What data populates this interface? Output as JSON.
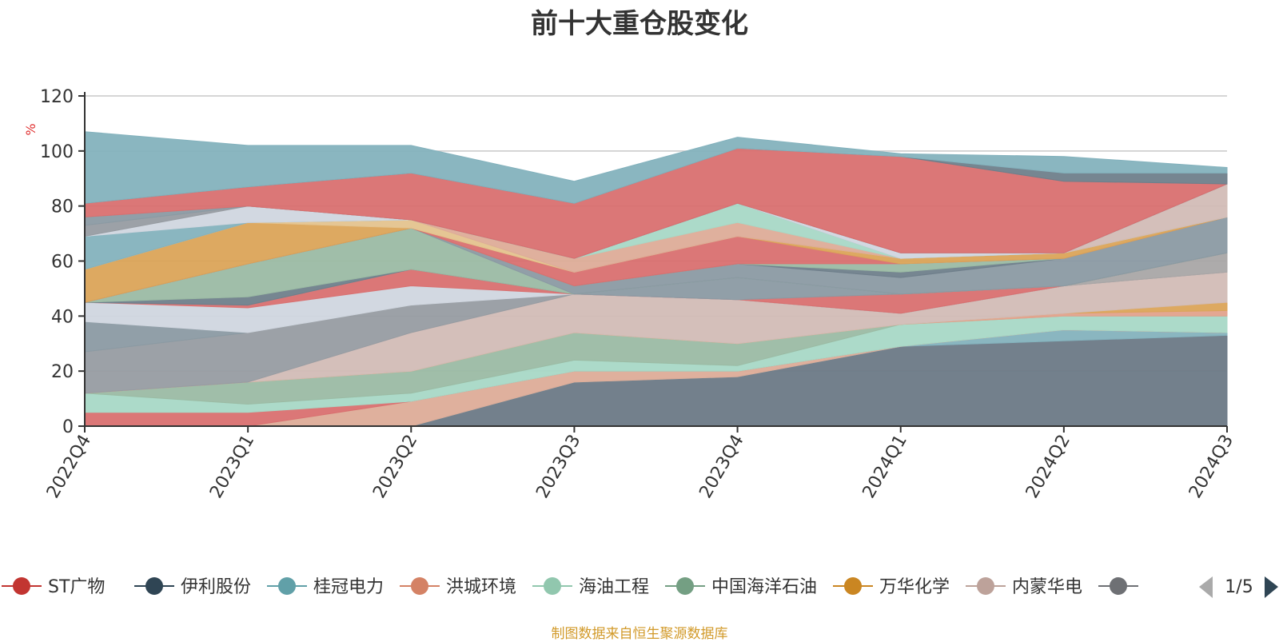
{
  "source_note": "制图数据来自恒生聚源数据库",
  "legend": {
    "page_label": "1/5",
    "prev_icon": "triangle-left-icon",
    "next_icon": "triangle-right-icon",
    "visible": [
      "ST广物",
      "伊利股份",
      "桂冠电力",
      "洪城环境",
      "海油工程",
      "中国海洋石油",
      "万华化学",
      "内蒙华电",
      ""
    ]
  },
  "chart_data": {
    "type": "area",
    "stacked": true,
    "title": "前十大重仓股变化",
    "ylabel": "%",
    "ylim": [
      0,
      120
    ],
    "yticks": [
      0,
      20,
      40,
      60,
      80,
      100,
      120
    ],
    "grid": true,
    "legend_position": "bottom",
    "categories": [
      "2022Q4",
      "2023Q1",
      "2023Q2",
      "2023Q3",
      "2023Q4",
      "2024Q1",
      "2024Q2",
      "2024Q3"
    ],
    "series": [
      {
        "name": "",
        "color": "#6b7986",
        "values": [
          0,
          0,
          0,
          16,
          18,
          29,
          31,
          33
        ]
      },
      {
        "name": "",
        "color": "#84b2bd",
        "values": [
          0,
          0,
          0,
          0,
          0,
          0,
          4,
          1
        ]
      },
      {
        "name": "",
        "color": "#ddac98",
        "values": [
          0,
          0,
          9,
          4,
          2,
          0,
          0,
          0
        ]
      },
      {
        "name": "",
        "color": "#d97070",
        "values": [
          5,
          5,
          0,
          0,
          0,
          0,
          0,
          0
        ]
      },
      {
        "name": "",
        "color": "#a8d8c6",
        "values": [
          7,
          3,
          3,
          4,
          2,
          8,
          5,
          6
        ]
      },
      {
        "name": "",
        "color": "#9bbba4",
        "values": [
          0,
          8,
          8,
          10,
          8,
          0,
          0,
          0
        ]
      },
      {
        "name": "",
        "color": "#e2a28c",
        "values": [
          0,
          0,
          0,
          0,
          0,
          0,
          1,
          2
        ]
      },
      {
        "name": "",
        "color": "#dba459",
        "values": [
          0,
          0,
          0,
          0,
          0,
          0,
          0,
          3
        ]
      },
      {
        "name": "",
        "color": "#d2bcb6",
        "values": [
          0,
          0,
          14,
          14,
          16,
          4,
          10,
          11
        ]
      },
      {
        "name": "",
        "color": "#979ca2",
        "values": [
          15,
          18,
          10,
          0,
          0,
          0,
          0,
          0
        ]
      },
      {
        "name": "",
        "color": "#a9a6a6",
        "values": [
          0,
          0,
          0,
          0,
          0,
          0,
          0,
          7
        ]
      },
      {
        "name": "",
        "color": "#8b9aa3",
        "values": [
          11,
          0,
          0,
          0,
          0,
          0,
          0,
          0
        ]
      },
      {
        "name": "",
        "color": "#d0d6df",
        "values": [
          7,
          9,
          7,
          0,
          0,
          0,
          0,
          0
        ]
      },
      {
        "name": "",
        "color": "#d97070",
        "values": [
          0,
          1,
          6,
          0,
          0,
          7,
          0,
          0
        ]
      },
      {
        "name": "",
        "color": "#8b9aa3",
        "values": [
          0,
          0,
          0,
          0,
          8,
          0,
          0,
          0
        ]
      },
      {
        "name": "",
        "color": "#6f7f8b",
        "values": [
          0,
          3,
          0,
          0,
          0,
          0,
          0,
          0
        ]
      },
      {
        "name": "",
        "color": "#9bbba4",
        "values": [
          0,
          12,
          15,
          0,
          0,
          0,
          0,
          0
        ]
      },
      {
        "name": "",
        "color": "#8b9aa3",
        "values": [
          0,
          0,
          0,
          3,
          5,
          6,
          10,
          13
        ]
      },
      {
        "name": "",
        "color": "#6f7f8b",
        "values": [
          0,
          0,
          0,
          0,
          0,
          2,
          0,
          0
        ]
      },
      {
        "name": "",
        "color": "#9bbba4",
        "values": [
          0,
          0,
          0,
          0,
          0,
          3,
          0,
          0
        ]
      },
      {
        "name": "",
        "color": "#d97070",
        "values": [
          0,
          0,
          0,
          5,
          10,
          0,
          0,
          0
        ]
      },
      {
        "name": "",
        "color": "#dba459",
        "values": [
          12,
          15,
          0,
          0,
          0,
          2,
          2,
          0
        ]
      },
      {
        "name": "",
        "color": "#e4c38e",
        "values": [
          0,
          0,
          3,
          0,
          0,
          0,
          0,
          0
        ]
      },
      {
        "name": "",
        "color": "#ddac98",
        "values": [
          0,
          0,
          0,
          5,
          5,
          0,
          0,
          0
        ]
      },
      {
        "name": "",
        "color": "#a8d8c6",
        "values": [
          0,
          0,
          0,
          0,
          7,
          0,
          0,
          0
        ]
      },
      {
        "name": "",
        "color": "#d2bcb6",
        "values": [
          0,
          0,
          0,
          0,
          0,
          0,
          0,
          12
        ]
      },
      {
        "name": "",
        "color": "#84b2bd",
        "values": [
          12,
          0,
          0,
          0,
          0,
          0,
          0,
          0
        ]
      },
      {
        "name": "",
        "color": "#d0d6df",
        "values": [
          0,
          6,
          0,
          0,
          0,
          2,
          0,
          0
        ]
      },
      {
        "name": "",
        "color": "#979ca2",
        "values": [
          4,
          0,
          0,
          0,
          0,
          0,
          0,
          0
        ]
      },
      {
        "name": "",
        "color": "#8b9aa3",
        "values": [
          3,
          0,
          0,
          0,
          0,
          0,
          0,
          0
        ]
      },
      {
        "name": "",
        "color": "#d97070",
        "values": [
          5,
          7,
          17,
          20,
          20,
          35,
          26,
          0
        ]
      },
      {
        "name": "",
        "color": "#6f7f8b",
        "values": [
          0,
          0,
          0,
          0,
          0,
          0,
          3,
          4
        ]
      },
      {
        "name": "",
        "color": "#84b2bd",
        "values": [
          26,
          15,
          10,
          8,
          4,
          1,
          6,
          2
        ]
      }
    ],
    "legend_markers": [
      {
        "name": "ST广物",
        "color": "#c23531"
      },
      {
        "name": "伊利股份",
        "color": "#2f4554"
      },
      {
        "name": "桂冠电力",
        "color": "#61a0a8"
      },
      {
        "name": "洪城环境",
        "color": "#d48265"
      },
      {
        "name": "海油工程",
        "color": "#91c7ae"
      },
      {
        "name": "中国海洋石油",
        "color": "#749f83"
      },
      {
        "name": "万华化学",
        "color": "#ca8622"
      },
      {
        "name": "内蒙华电",
        "color": "#bda29a"
      },
      {
        "name": "",
        "color": "#6e7074"
      }
    ]
  }
}
